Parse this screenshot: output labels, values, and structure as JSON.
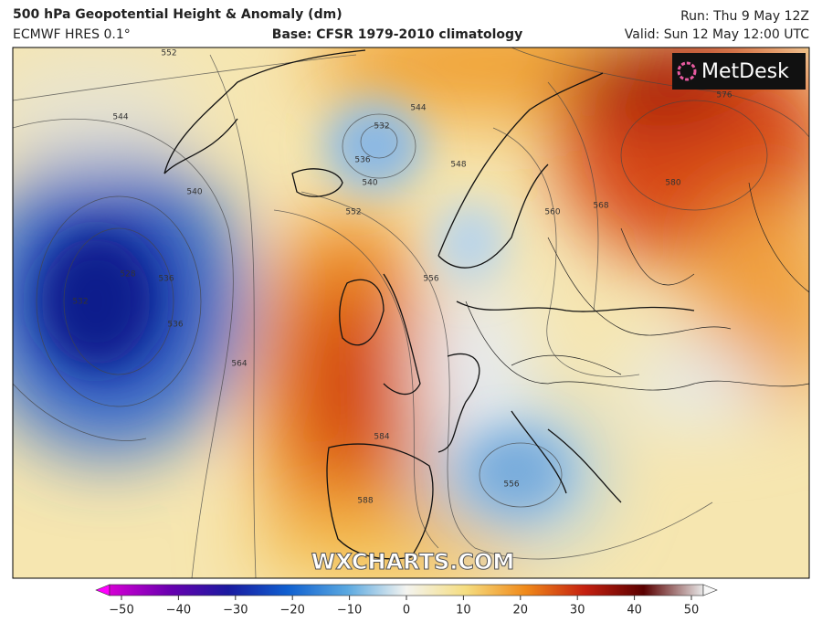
{
  "header": {
    "title": "500 hPa Geopotential Height & Anomaly (dm)",
    "model": "ECMWF HRES 0.1°",
    "base": "Base: CFSR 1979-2010 climatology",
    "run": "Run: Thu 9 May 12Z",
    "valid": "Valid: Sun 12 May 12:00 UTC"
  },
  "map": {
    "logo": "MetDesk",
    "watermark": "WXCHARTS.COM",
    "contour_labels": [
      552,
      544,
      532,
      536,
      540,
      540,
      544,
      548,
      552,
      556,
      560,
      568,
      576,
      580,
      528,
      532,
      536,
      536,
      564,
      584,
      588,
      556
    ]
  },
  "colorbar": {
    "lim": [
      -50,
      50
    ],
    "ticks": [
      {
        "value": -50,
        "label": "−50"
      },
      {
        "value": -40,
        "label": "−40"
      },
      {
        "value": -30,
        "label": "−30"
      },
      {
        "value": -20,
        "label": "−20"
      },
      {
        "value": -10,
        "label": "−10"
      },
      0,
      10,
      20,
      30,
      40,
      50
    ]
  }
}
